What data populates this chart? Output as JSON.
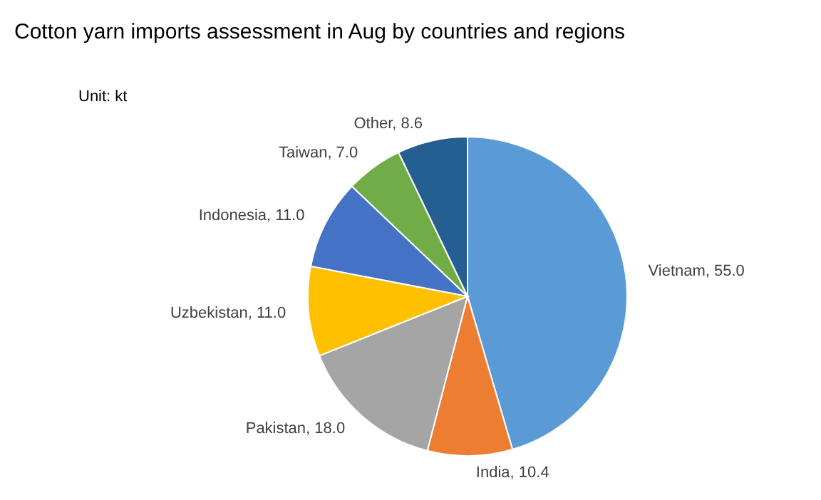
{
  "chart_data": {
    "type": "pie",
    "title": "Cotton yarn imports assessment in Aug by countries and regions",
    "annotations": [
      "Unit: kt"
    ],
    "categories": [
      "Vietnam",
      "India",
      "Pakistan",
      "Uzbekistan",
      "Indonesia",
      "Taiwan",
      "Other"
    ],
    "values": [
      55.0,
      10.4,
      18.0,
      11.0,
      11.0,
      7.0,
      8.6
    ],
    "value_labels": [
      "55.0",
      "10.4",
      "18.0",
      "11.0",
      "11.0",
      "7.0",
      "8.6"
    ],
    "colors": [
      "#5b9bd5",
      "#ed7d31",
      "#a5a5a5",
      "#ffc000",
      "#4472c4",
      "#70ad47",
      "#255e91"
    ]
  }
}
